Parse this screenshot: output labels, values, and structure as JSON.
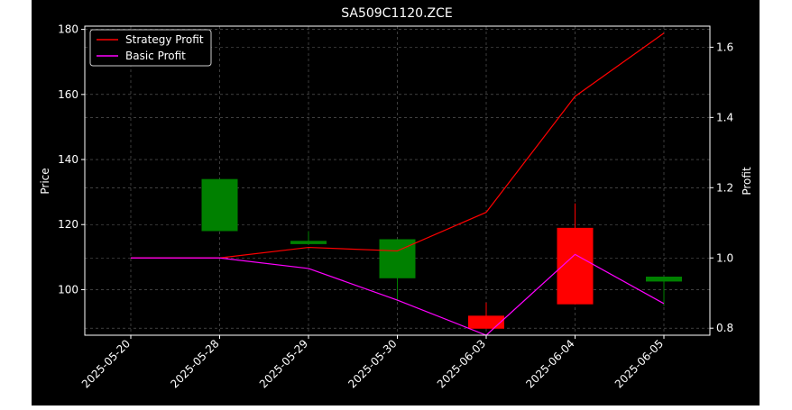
{
  "chart_data": {
    "type": "candlestick+line",
    "title": "SA509C1120.ZCE",
    "xlabel": "",
    "ylabel_left": "Price",
    "ylabel_right": "Profit",
    "categories": [
      "2025-05-20",
      "2025-05-28",
      "2025-05-29",
      "2025-05-30",
      "2025-06-03",
      "2025-06-04",
      "2025-06-05"
    ],
    "ylim_left": [
      86,
      181
    ],
    "yticks_left": [
      100,
      120,
      140,
      160,
      180
    ],
    "ylim_right": [
      0.78,
      1.66
    ],
    "yticks_right": [
      0.8,
      1.0,
      1.2,
      1.4,
      1.6
    ],
    "grid": true,
    "legend_position": "upper-left",
    "candles": [
      {
        "date": "2025-05-28",
        "open": 118.0,
        "close": 134.0,
        "high": 134.0,
        "low": 118.0
      },
      {
        "date": "2025-05-29",
        "open": 114.0,
        "close": 115.0,
        "high": 118.0,
        "low": 114.0
      },
      {
        "date": "2025-05-30",
        "open": 103.5,
        "close": 115.5,
        "high": 115.5,
        "low": 96.5
      },
      {
        "date": "2025-06-03",
        "open": 92.0,
        "close": 88.0,
        "high": 96.0,
        "low": 88.0
      },
      {
        "date": "2025-06-04",
        "open": 119.0,
        "close": 95.5,
        "high": 126.5,
        "low": 95.5
      },
      {
        "date": "2025-06-05",
        "open": 102.5,
        "close": 104.0,
        "high": 104.0,
        "low": 95.0
      }
    ],
    "series": [
      {
        "name": "Strategy Profit",
        "color": "#ff0000",
        "values": [
          1.0,
          1.0,
          1.03,
          1.02,
          1.13,
          1.46,
          1.64
        ]
      },
      {
        "name": "Basic Profit",
        "color": "#ff00ff",
        "values": [
          1.0,
          1.0,
          0.97,
          0.88,
          0.78,
          1.01,
          0.87
        ]
      }
    ],
    "colors": {
      "up": "#008000",
      "down": "#ff0000",
      "background": "#000000",
      "grid": "#808080",
      "axis": "#ffffff"
    }
  }
}
